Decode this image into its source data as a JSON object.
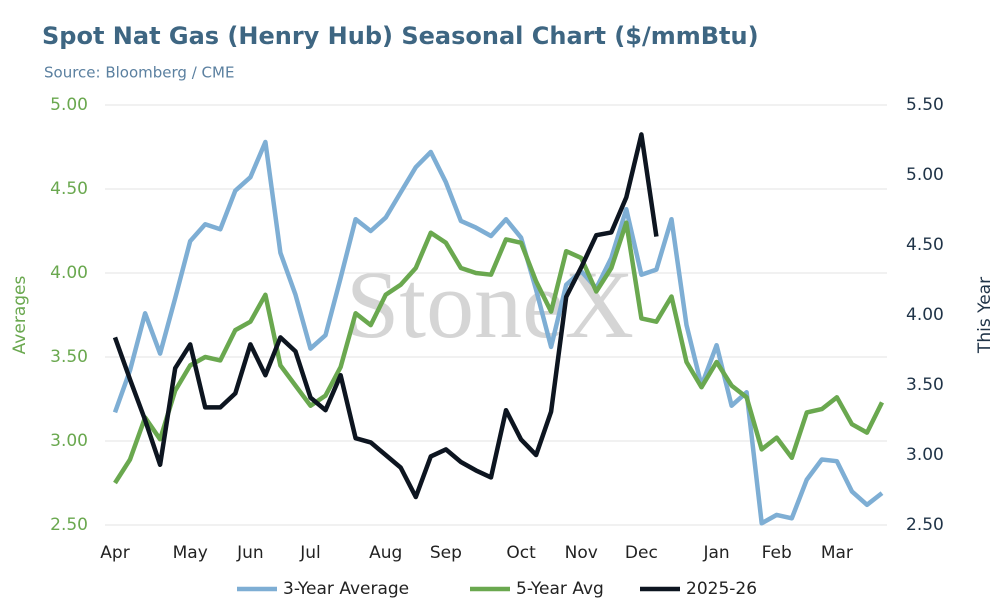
{
  "chart_data": {
    "type": "line",
    "title": "Spot Nat Gas (Henry Hub) Seasonal Chart ($/mmBtu)",
    "subtitle": "Source: Bloomberg / CME",
    "watermark": "StoneX",
    "y_label": "Averages",
    "y2_label": "This Year",
    "categories": [
      "Apr",
      null,
      null,
      null,
      null,
      "May",
      null,
      null,
      null,
      "Jun",
      null,
      null,
      null,
      "Jul",
      null,
      null,
      null,
      null,
      "Aug",
      null,
      null,
      null,
      "Sep",
      null,
      null,
      null,
      null,
      "Oct",
      null,
      null,
      null,
      "Nov",
      null,
      null,
      null,
      "Dec",
      null,
      null,
      null,
      null,
      "Jan",
      null,
      null,
      null,
      "Feb",
      null,
      null,
      null,
      "Mar",
      null,
      null,
      null
    ],
    "ylim": [
      2.5,
      5.0
    ],
    "yticks": [
      {
        "value": 2.5,
        "label": "2.50"
      },
      {
        "value": 3.0,
        "label": "3.00"
      },
      {
        "value": 3.5,
        "label": "3.50"
      },
      {
        "value": 4.0,
        "label": "4.00"
      },
      {
        "value": 4.5,
        "label": "4.50"
      },
      {
        "value": 5.0,
        "label": "5.00"
      }
    ],
    "y2lim": [
      2.5,
      5.5
    ],
    "y2ticks": [
      {
        "value": 2.5,
        "label": "2.50"
      },
      {
        "value": 3.0,
        "label": "3.00"
      },
      {
        "value": 3.5,
        "label": "3.50"
      },
      {
        "value": 4.0,
        "label": "4.00"
      },
      {
        "value": 4.5,
        "label": "4.50"
      },
      {
        "value": 5.0,
        "label": "5.00"
      },
      {
        "value": 5.5,
        "label": "5.50"
      }
    ],
    "grid": true,
    "legend": "bottom",
    "series": [
      {
        "name": "3-Year Average",
        "color": "#7eaed4",
        "values": [
          3.17,
          3.42,
          3.76,
          3.52,
          3.85,
          4.19,
          4.29,
          4.26,
          4.49,
          4.57,
          4.78,
          4.12,
          3.87,
          3.55,
          3.63,
          3.97,
          4.32,
          4.25,
          4.33,
          4.48,
          4.63,
          4.72,
          4.54,
          4.31,
          4.27,
          4.22,
          4.32,
          4.21,
          3.9,
          3.56,
          3.93,
          4.01,
          3.91,
          4.09,
          4.38,
          3.99,
          4.02,
          4.32,
          3.69,
          3.33,
          3.57,
          3.21,
          3.29,
          2.51,
          2.56,
          2.54,
          2.77,
          2.89,
          2.88,
          2.7,
          2.62,
          2.69
        ]
      },
      {
        "name": "5-Year Avg",
        "color": "#6aa84f",
        "values": [
          2.75,
          2.89,
          3.14,
          3.01,
          3.3,
          3.45,
          3.5,
          3.48,
          3.66,
          3.71,
          3.87,
          3.45,
          3.33,
          3.21,
          3.27,
          3.44,
          3.76,
          3.69,
          3.87,
          3.93,
          4.03,
          4.24,
          4.18,
          4.03,
          4.0,
          3.99,
          4.2,
          4.18,
          3.95,
          3.77,
          4.13,
          4.09,
          3.89,
          4.03,
          4.3,
          3.73,
          3.71,
          3.86,
          3.47,
          3.32,
          3.47,
          3.33,
          3.26,
          2.95,
          3.02,
          2.9,
          3.17,
          3.19,
          3.26,
          3.1,
          3.05,
          3.23
        ]
      },
      {
        "name": "2025-26",
        "color": "#0d1520",
        "axis": "y2",
        "values": [
          3.84,
          3.54,
          3.25,
          2.93,
          3.62,
          3.79,
          3.34,
          3.34,
          3.44,
          3.79,
          3.57,
          3.84,
          3.74,
          3.41,
          3.32,
          3.57,
          3.12,
          3.09,
          3.0,
          2.91,
          2.7,
          2.99,
          3.04,
          2.95,
          2.89,
          2.84,
          3.32,
          3.11,
          3.0,
          3.31,
          4.13,
          4.34,
          4.57,
          4.59,
          4.84,
          5.29,
          4.56,
          null,
          null,
          null,
          null,
          null,
          null,
          null,
          null,
          null,
          null,
          null,
          null,
          null,
          null,
          null
        ]
      }
    ]
  }
}
